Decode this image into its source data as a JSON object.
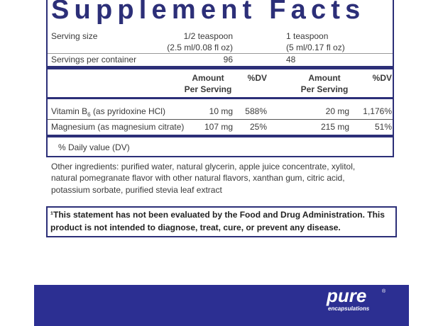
{
  "title": "Supplement Facts",
  "serving": {
    "size_label": "Serving size",
    "size_1": "1/2 teaspoon",
    "size_1_sub": "(2.5 ml/0.08 fl oz)",
    "size_2": "1 teaspoon",
    "size_2_sub": "(5 ml/0.17 fl oz)",
    "per_container_label": "Servings per container",
    "per_container_1": "96",
    "per_container_2": "48"
  },
  "header": {
    "amount_1": "Amount",
    "per_serving_1": "Per Serving",
    "dv_1": "%DV",
    "amount_2": "Amount",
    "per_serving_2": "Per Serving",
    "dv_2": "%DV"
  },
  "rows": [
    {
      "name": "Vitamin B",
      "sub": "6",
      "name_rest": "(as pyridoxine HCl)",
      "amount_1": "10 mg",
      "dv_1": "588%",
      "amount_2": "20 mg",
      "dv_2": "1,176%"
    },
    {
      "name": "Magnesium (as magnesium citrate)",
      "amount_1": "107 mg",
      "dv_1": "25%",
      "amount_2": "215 mg",
      "dv_2": "51%"
    }
  ],
  "footnote": "% Daily value (DV)",
  "other_ingredients": [
    "Other ingredients: purified water, natural glycerin, apple juice concentrate, xylitol,",
    "natural pomegranate flavor with other natural flavors, xanthan gum, citric acid,",
    "potassium sorbate, purified stevia leaf extract"
  ],
  "disclaimer": [
    "¹This statement has not been evaluated by the Food and Drug Administration. This",
    "product is not intended to diagnose, treat, cure, or prevent any disease."
  ],
  "brand": {
    "name": "pure",
    "registered": "®",
    "tagline": "encapsulations"
  }
}
